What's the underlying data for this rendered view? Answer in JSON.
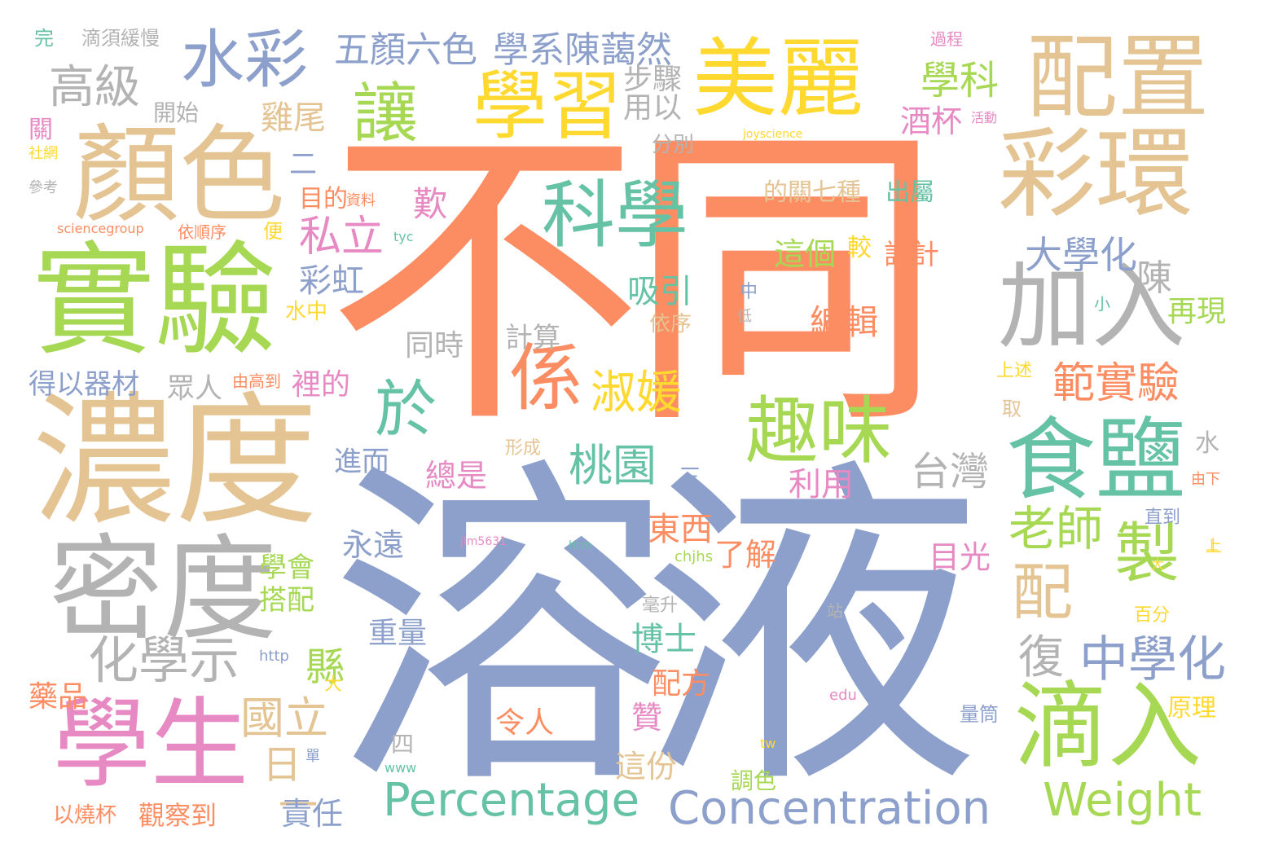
{
  "palette": {
    "orange": "#fc8d62",
    "blue": "#8da0cb",
    "green": "#66c2a5",
    "lime": "#a6d854",
    "pink": "#e78ac3",
    "yellow": "#ffd92f",
    "tan": "#e5c494",
    "gray": "#b3b3b3"
  },
  "words": [
    "不同",
    "溶液",
    "濃度",
    "實驗",
    "顏色",
    "密度",
    "學生",
    "食鹽",
    "滴入",
    "配置",
    "彩環",
    "加入",
    "美麗",
    "學習",
    "科學",
    "趣味",
    "水彩",
    "讓",
    "於",
    "係",
    "Concentration",
    "Percentage",
    "Weight",
    "淑媛",
    "桃園",
    "編輯",
    "範實驗",
    "台灣",
    "老師",
    "製",
    "配",
    "中學化",
    "化學示",
    "高級",
    "五顏六色",
    "學系陳藹然",
    "學科",
    "酒杯",
    "私立",
    "大學化",
    "陳",
    "國立",
    "日",
    "一",
    "縣",
    "復",
    "吸引",
    "歎",
    "彩虹",
    "雞尾",
    "步驟",
    "用以",
    "再現",
    "水",
    "利用",
    "總是",
    "東西",
    "了解",
    "目光",
    "博士",
    "配方",
    "贊",
    "這份",
    "責任",
    "觀察到",
    "以燒杯",
    "藥品",
    "得以器材",
    "眾人",
    "同時",
    "計算",
    "裡的",
    "進而",
    "永遠",
    "學會",
    "搭配",
    "重量",
    "令人",
    "的關七種",
    "出屬",
    "這個",
    "較",
    "設計",
    "二",
    "三",
    "四",
    "目的",
    "資料",
    "開始",
    "分別",
    "參考",
    "社網",
    "關",
    "完",
    "滴須緩慢",
    "過程",
    "活動",
    "joyscience",
    "sciencegroup",
    "依順序",
    "便",
    "tyc",
    "中",
    "低",
    "小",
    "依序",
    "水中",
    "由高到",
    "上述",
    "取",
    "形成",
    "由下",
    "直到",
    "上",
    "jim5631",
    "htm",
    "chjhs",
    "毫升",
    "站",
    "百分",
    "http",
    "大",
    "edu",
    "原理",
    "量筒",
    "單",
    "www",
    "tw",
    "調色",
    "大",
    "上"
  ]
}
